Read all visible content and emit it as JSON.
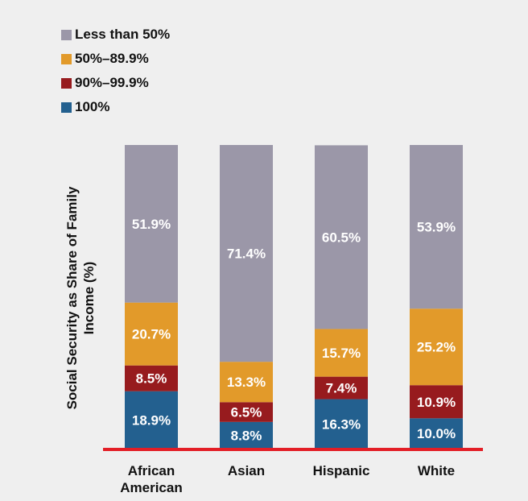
{
  "chart_data": {
    "type": "bar",
    "stacked": true,
    "ylabel": "Social Security as Share of Family Income (%)",
    "xlabel": "",
    "title": "",
    "ylim": [
      0,
      100
    ],
    "categories": [
      "African American",
      "Asian",
      "Hispanic",
      "White"
    ],
    "series": [
      {
        "name": "100%",
        "color": "#23608f",
        "values": [
          18.9,
          8.8,
          16.3,
          10.0
        ],
        "labels": [
          "18.9%",
          "8.8%",
          "16.3%",
          "10.0%"
        ]
      },
      {
        "name": "90%–99.9%",
        "color": "#971b1e",
        "values": [
          8.5,
          6.5,
          7.4,
          10.9
        ],
        "labels": [
          "8.5%",
          "6.5%",
          "7.4%",
          "10.9%"
        ]
      },
      {
        "name": "50%–89.9%",
        "color": "#e29a2a",
        "values": [
          20.7,
          13.3,
          15.7,
          25.2
        ],
        "labels": [
          "20.7%",
          "13.3%",
          "15.7%",
          "25.2%"
        ]
      },
      {
        "name": "Less than 50%",
        "color": "#9b97a8",
        "values": [
          51.9,
          71.4,
          60.5,
          53.9
        ],
        "labels": [
          "51.9%",
          "71.4%",
          "60.5%",
          "53.9%"
        ]
      }
    ],
    "legend_order": [
      "Less than 50%",
      "50%–89.9%",
      "90%–99.9%",
      "100%"
    ],
    "legend_position": "top-left",
    "baseline_color": "#e31e26",
    "grid": false
  }
}
